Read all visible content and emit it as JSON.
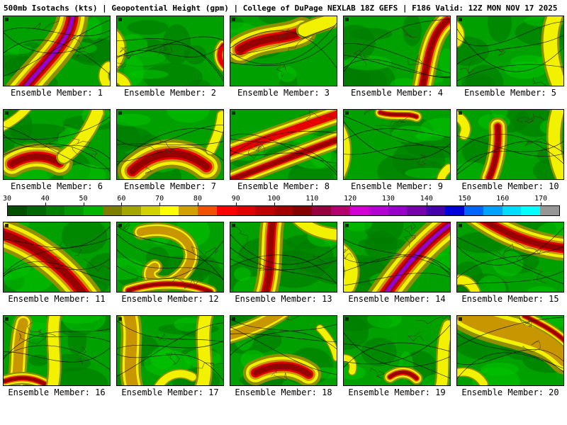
{
  "header": {
    "title": "500mb Isotachs (kts) | Geopotential Height (gpm) | College of DuPage NEXLAB  18Z GEFS | F186 Valid: 12Z MON NOV 17 2025"
  },
  "panels": [
    "Ensemble Member: 1",
    "Ensemble Member: 2",
    "Ensemble Member: 3",
    "Ensemble Member: 4",
    "Ensemble Member: 5",
    "Ensemble Member: 6",
    "Ensemble Member: 7",
    "Ensemble Member: 8",
    "Ensemble Member: 9",
    "Ensemble Member: 10",
    "Ensemble Member: 11",
    "Ensemble Member: 12",
    "Ensemble Member: 13",
    "Ensemble Member: 14",
    "Ensemble Member: 15",
    "Ensemble Member: 16",
    "Ensemble Member: 17",
    "Ensemble Member: 18",
    "Ensemble Member: 19",
    "Ensemble Member: 20"
  ],
  "colorbar": {
    "units": "kts",
    "tick_labels": [
      30,
      40,
      50,
      60,
      70,
      80,
      90,
      100,
      110,
      120,
      130,
      140,
      150,
      160,
      170
    ],
    "min": 30,
    "max": 175,
    "colors": [
      "#005000",
      "#006800",
      "#008000",
      "#009800",
      "#00b400",
      "#7d7d00",
      "#a5a500",
      "#d2d200",
      "#ffff00",
      "#d2a000",
      "#f05000",
      "#ff0000",
      "#e00000",
      "#c00000",
      "#a00000",
      "#860000",
      "#96003c",
      "#b4006e",
      "#d200d2",
      "#b400d2",
      "#9600c8",
      "#7800aa",
      "#4600aa",
      "#0000dc",
      "#0064ff",
      "#00a0ff",
      "#00dcff",
      "#00ffff",
      "#969696"
    ]
  },
  "palette": {
    "map_bg": "#00a000",
    "map_dark_green": "#007a00",
    "map_light_green": "#00c400",
    "streak_levels": [
      "#8f8f00",
      "#f2f200",
      "#c89600",
      "#e60000",
      "#960000",
      "#9600d2"
    ],
    "contour": "#000000",
    "geo": "#3a3a20",
    "border": "#000000"
  },
  "chart_data": {
    "type": "heatmap",
    "title": "500mb Isotachs (kts) | Geopotential Height (gpm)",
    "source": "College of DuPage NEXLAB",
    "model": "GEFS",
    "cycle": "18Z",
    "forecast_hour": "F186",
    "valid": "12Z MON NOV 17 2025",
    "field": "500mb Isotachs",
    "field_units": "kts",
    "overlay": "Geopotential Height (gpm)",
    "layout": "4 rows x 5 columns of ensemble member maps, colorbar between rows 2 and 3",
    "panels": [
      "Ensemble Member: 1",
      "Ensemble Member: 2",
      "Ensemble Member: 3",
      "Ensemble Member: 4",
      "Ensemble Member: 5",
      "Ensemble Member: 6",
      "Ensemble Member: 7",
      "Ensemble Member: 8",
      "Ensemble Member: 9",
      "Ensemble Member: 10",
      "Ensemble Member: 11",
      "Ensemble Member: 12",
      "Ensemble Member: 13",
      "Ensemble Member: 14",
      "Ensemble Member: 15",
      "Ensemble Member: 16",
      "Ensemble Member: 17",
      "Ensemble Member: 18",
      "Ensemble Member: 19",
      "Ensemble Member: 20"
    ],
    "colorbar_ticks": [
      30,
      40,
      50,
      60,
      70,
      80,
      90,
      100,
      110,
      120,
      130,
      140,
      150,
      160,
      170
    ],
    "legend_position": "middle"
  }
}
